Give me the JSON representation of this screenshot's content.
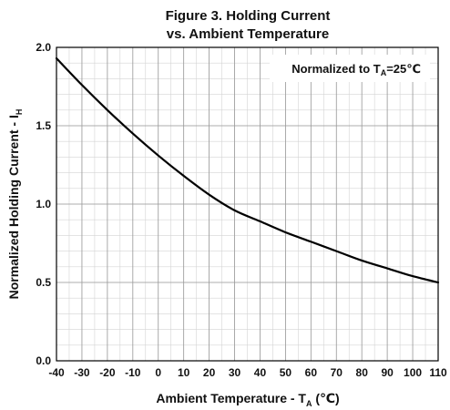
{
  "chart_data": {
    "type": "line",
    "title_line1": "Figure 3. Holding Current",
    "title_line2": "vs. Ambient Temperature",
    "xlabel": {
      "text": "Ambient Temperature - T",
      "sub": "A",
      "unit": " (℃)"
    },
    "ylabel": {
      "text": "Normalized Holding Current - I",
      "sub": "H"
    },
    "annotation": {
      "text": "Normalized to T",
      "sub": "A",
      "suffix": "=25℃"
    },
    "xlim": [
      -40,
      110
    ],
    "ylim": [
      0.0,
      2.0
    ],
    "x_ticks": [
      -40,
      -30,
      -20,
      -10,
      0,
      10,
      20,
      30,
      40,
      50,
      60,
      70,
      80,
      90,
      100,
      110
    ],
    "y_ticks": [
      0.0,
      0.5,
      1.0,
      1.5,
      2.0
    ],
    "y_tick_labels": [
      "0.0",
      "0.5",
      "1.0",
      "1.5",
      "2.0"
    ],
    "x_minor_step": 5,
    "y_minor_step": 0.1,
    "grid": true,
    "series": [
      {
        "color": "#000000",
        "x": [
          -40,
          -30,
          -20,
          -10,
          0,
          10,
          20,
          30,
          40,
          50,
          60,
          70,
          80,
          90,
          100,
          110
        ],
        "y": [
          1.93,
          1.76,
          1.6,
          1.45,
          1.31,
          1.18,
          1.06,
          0.96,
          0.89,
          0.82,
          0.76,
          0.7,
          0.64,
          0.59,
          0.54,
          0.5
        ]
      }
    ]
  }
}
